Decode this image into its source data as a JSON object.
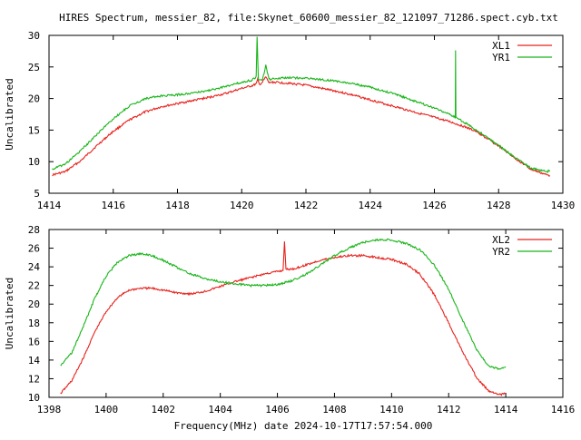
{
  "title": "HIRES Spectrum, messier_82, file:Skynet_60600_messier_82_121097_71286.spect.cyb.txt",
  "xlabel_bottom": "Frequency(MHz) date 2024-10-17T17:57:54.000",
  "colors": {
    "red": "#e8221c",
    "green": "#19b519",
    "frame": "#000000"
  },
  "chart_data": [
    {
      "type": "line",
      "title": "HIRES Spectrum, messier_82, file:Skynet_60600_messier_82_121097_71286.spect.cyb.txt",
      "xlabel": "",
      "ylabel": "Uncalibrated",
      "xlim": [
        1414,
        1430
      ],
      "ylim": [
        5,
        30
      ],
      "xticks": [
        1414,
        1416,
        1418,
        1420,
        1422,
        1424,
        1426,
        1428,
        1430
      ],
      "yticks": [
        5,
        10,
        15,
        20,
        25,
        30
      ],
      "grid": false,
      "legend": "top-right",
      "series": [
        {
          "name": "XL1",
          "color": "#e8221c",
          "points": [
            [
              1414.1,
              7.9
            ],
            [
              1414.5,
              8.4
            ],
            [
              1415.0,
              10.2
            ],
            [
              1415.5,
              12.6
            ],
            [
              1416.0,
              14.8
            ],
            [
              1416.5,
              16.6
            ],
            [
              1417.0,
              17.9
            ],
            [
              1417.5,
              18.7
            ],
            [
              1418.0,
              19.2
            ],
            [
              1418.5,
              19.7
            ],
            [
              1419.0,
              20.2
            ],
            [
              1419.5,
              20.8
            ],
            [
              1420.0,
              21.6
            ],
            [
              1420.3,
              22.0
            ],
            [
              1420.45,
              22.3
            ],
            [
              1420.5,
              23.0
            ],
            [
              1420.55,
              22.2
            ],
            [
              1420.65,
              22.6
            ],
            [
              1420.75,
              23.4
            ],
            [
              1420.85,
              22.5
            ],
            [
              1421.0,
              22.6
            ],
            [
              1421.5,
              22.4
            ],
            [
              1422.0,
              22.1
            ],
            [
              1422.5,
              21.6
            ],
            [
              1423.0,
              21.1
            ],
            [
              1423.5,
              20.5
            ],
            [
              1424.0,
              19.8
            ],
            [
              1424.5,
              19.1
            ],
            [
              1425.0,
              18.4
            ],
            [
              1425.5,
              17.7
            ],
            [
              1426.0,
              17.0
            ],
            [
              1426.5,
              16.3
            ],
            [
              1426.9,
              15.6
            ],
            [
              1427.3,
              14.8
            ],
            [
              1427.5,
              14.1
            ],
            [
              1428.0,
              12.5
            ],
            [
              1428.5,
              10.6
            ],
            [
              1429.0,
              8.8
            ],
            [
              1429.5,
              7.9
            ],
            [
              1429.6,
              7.8
            ]
          ]
        },
        {
          "name": "YR1",
          "color": "#19b519",
          "points": [
            [
              1414.1,
              8.8
            ],
            [
              1414.5,
              9.6
            ],
            [
              1415.0,
              11.8
            ],
            [
              1415.5,
              14.4
            ],
            [
              1416.0,
              16.8
            ],
            [
              1416.5,
              18.8
            ],
            [
              1417.0,
              20.0
            ],
            [
              1417.5,
              20.4
            ],
            [
              1418.0,
              20.6
            ],
            [
              1418.5,
              20.9
            ],
            [
              1419.0,
              21.3
            ],
            [
              1419.5,
              21.9
            ],
            [
              1420.0,
              22.6
            ],
            [
              1420.3,
              22.9
            ],
            [
              1420.45,
              23.4
            ],
            [
              1420.48,
              29.7
            ],
            [
              1420.52,
              23.0
            ],
            [
              1420.65,
              23.0
            ],
            [
              1420.75,
              25.3
            ],
            [
              1420.85,
              23.0
            ],
            [
              1421.0,
              23.2
            ],
            [
              1421.5,
              23.3
            ],
            [
              1422.0,
              23.2
            ],
            [
              1422.5,
              23.0
            ],
            [
              1423.0,
              22.7
            ],
            [
              1423.5,
              22.3
            ],
            [
              1424.0,
              21.8
            ],
            [
              1424.5,
              21.1
            ],
            [
              1425.0,
              20.3
            ],
            [
              1425.5,
              19.4
            ],
            [
              1426.0,
              18.5
            ],
            [
              1426.5,
              17.4
            ],
            [
              1426.65,
              17.0
            ],
            [
              1426.66,
              27.5
            ],
            [
              1426.67,
              17.0
            ],
            [
              1427.0,
              16.0
            ],
            [
              1427.5,
              14.4
            ],
            [
              1428.0,
              12.6
            ],
            [
              1428.5,
              10.7
            ],
            [
              1429.0,
              9.0
            ],
            [
              1429.5,
              8.4
            ],
            [
              1429.6,
              8.6
            ]
          ]
        }
      ]
    },
    {
      "type": "line",
      "xlabel": "Frequency(MHz) date 2024-10-17T17:57:54.000",
      "ylabel": "Uncalibrated",
      "xlim": [
        1398,
        1416
      ],
      "ylim": [
        10,
        28
      ],
      "xticks": [
        1398,
        1400,
        1402,
        1404,
        1406,
        1408,
        1410,
        1412,
        1414,
        1416
      ],
      "yticks": [
        10,
        12,
        14,
        16,
        18,
        20,
        22,
        24,
        26,
        28
      ],
      "grid": false,
      "legend": "top-right",
      "series": [
        {
          "name": "XL2",
          "color": "#e8221c",
          "points": [
            [
              1398.4,
              10.4
            ],
            [
              1398.8,
              11.8
            ],
            [
              1399.2,
              14.2
            ],
            [
              1399.6,
              17.0
            ],
            [
              1400.0,
              19.2
            ],
            [
              1400.4,
              20.7
            ],
            [
              1400.8,
              21.5
            ],
            [
              1401.2,
              21.7
            ],
            [
              1401.6,
              21.7
            ],
            [
              1402.0,
              21.5
            ],
            [
              1402.5,
              21.2
            ],
            [
              1403.0,
              21.1
            ],
            [
              1403.5,
              21.4
            ],
            [
              1404.0,
              21.9
            ],
            [
              1404.5,
              22.4
            ],
            [
              1405.0,
              22.8
            ],
            [
              1405.5,
              23.2
            ],
            [
              1406.0,
              23.5
            ],
            [
              1406.2,
              23.6
            ],
            [
              1406.25,
              26.8
            ],
            [
              1406.3,
              23.7
            ],
            [
              1406.6,
              23.8
            ],
            [
              1407.0,
              24.2
            ],
            [
              1407.5,
              24.7
            ],
            [
              1408.0,
              25.0
            ],
            [
              1408.5,
              25.2
            ],
            [
              1409.0,
              25.2
            ],
            [
              1409.5,
              25.0
            ],
            [
              1410.0,
              24.8
            ],
            [
              1410.5,
              24.3
            ],
            [
              1411.0,
              23.2
            ],
            [
              1411.5,
              21.0
            ],
            [
              1412.0,
              18.0
            ],
            [
              1412.5,
              14.8
            ],
            [
              1413.0,
              12.0
            ],
            [
              1413.4,
              10.7
            ],
            [
              1413.8,
              10.3
            ],
            [
              1414.0,
              10.4
            ]
          ]
        },
        {
          "name": "YR2",
          "color": "#19b519",
          "points": [
            [
              1398.4,
              13.4
            ],
            [
              1398.8,
              14.8
            ],
            [
              1399.2,
              17.6
            ],
            [
              1399.6,
              20.6
            ],
            [
              1400.0,
              23.0
            ],
            [
              1400.4,
              24.5
            ],
            [
              1400.8,
              25.2
            ],
            [
              1401.2,
              25.4
            ],
            [
              1401.6,
              25.2
            ],
            [
              1402.0,
              24.7
            ],
            [
              1402.5,
              23.9
            ],
            [
              1403.0,
              23.2
            ],
            [
              1403.5,
              22.7
            ],
            [
              1404.0,
              22.4
            ],
            [
              1404.5,
              22.2
            ],
            [
              1405.0,
              22.0
            ],
            [
              1405.5,
              22.0
            ],
            [
              1406.0,
              22.1
            ],
            [
              1406.5,
              22.5
            ],
            [
              1407.0,
              23.2
            ],
            [
              1407.5,
              24.2
            ],
            [
              1408.0,
              25.2
            ],
            [
              1408.5,
              26.0
            ],
            [
              1409.0,
              26.6
            ],
            [
              1409.5,
              26.9
            ],
            [
              1410.0,
              26.9
            ],
            [
              1410.5,
              26.5
            ],
            [
              1411.0,
              25.8
            ],
            [
              1411.5,
              24.2
            ],
            [
              1412.0,
              21.6
            ],
            [
              1412.5,
              18.2
            ],
            [
              1413.0,
              15.0
            ],
            [
              1413.4,
              13.4
            ],
            [
              1413.8,
              13.0
            ],
            [
              1414.0,
              13.3
            ]
          ]
        }
      ]
    }
  ]
}
